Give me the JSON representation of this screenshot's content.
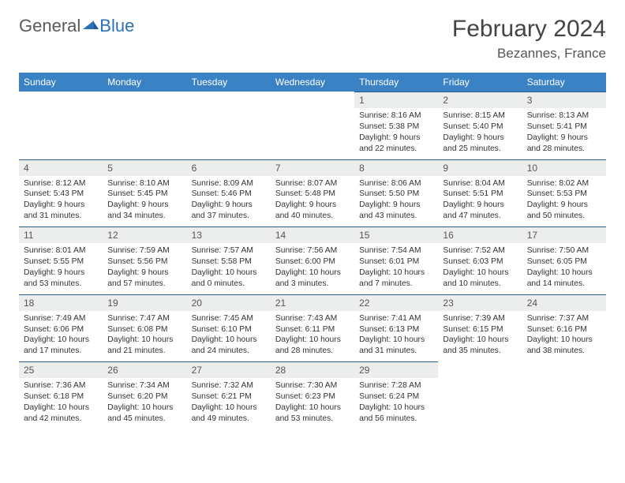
{
  "logo": {
    "text1": "General",
    "text2": "Blue"
  },
  "title": "February 2024",
  "location": "Bezannes, France",
  "colors": {
    "header_bg": "#3b82c4",
    "header_text": "#ffffff",
    "daynum_bg": "#eceded",
    "cell_border": "#2a5d8f",
    "logo_blue": "#2a72b5",
    "body_text": "#333333"
  },
  "typography": {
    "title_fontsize": 30,
    "location_fontsize": 17,
    "header_fontsize": 12,
    "daynum_fontsize": 12,
    "detail_fontsize": 10.3
  },
  "dayHeaders": [
    "Sunday",
    "Monday",
    "Tuesday",
    "Wednesday",
    "Thursday",
    "Friday",
    "Saturday"
  ],
  "weeks": [
    [
      {
        "num": "",
        "sunrise": "",
        "sunset": "",
        "daylight": ""
      },
      {
        "num": "",
        "sunrise": "",
        "sunset": "",
        "daylight": ""
      },
      {
        "num": "",
        "sunrise": "",
        "sunset": "",
        "daylight": ""
      },
      {
        "num": "",
        "sunrise": "",
        "sunset": "",
        "daylight": ""
      },
      {
        "num": "1",
        "sunrise": "Sunrise: 8:16 AM",
        "sunset": "Sunset: 5:38 PM",
        "daylight": "Daylight: 9 hours and 22 minutes."
      },
      {
        "num": "2",
        "sunrise": "Sunrise: 8:15 AM",
        "sunset": "Sunset: 5:40 PM",
        "daylight": "Daylight: 9 hours and 25 minutes."
      },
      {
        "num": "3",
        "sunrise": "Sunrise: 8:13 AM",
        "sunset": "Sunset: 5:41 PM",
        "daylight": "Daylight: 9 hours and 28 minutes."
      }
    ],
    [
      {
        "num": "4",
        "sunrise": "Sunrise: 8:12 AM",
        "sunset": "Sunset: 5:43 PM",
        "daylight": "Daylight: 9 hours and 31 minutes."
      },
      {
        "num": "5",
        "sunrise": "Sunrise: 8:10 AM",
        "sunset": "Sunset: 5:45 PM",
        "daylight": "Daylight: 9 hours and 34 minutes."
      },
      {
        "num": "6",
        "sunrise": "Sunrise: 8:09 AM",
        "sunset": "Sunset: 5:46 PM",
        "daylight": "Daylight: 9 hours and 37 minutes."
      },
      {
        "num": "7",
        "sunrise": "Sunrise: 8:07 AM",
        "sunset": "Sunset: 5:48 PM",
        "daylight": "Daylight: 9 hours and 40 minutes."
      },
      {
        "num": "8",
        "sunrise": "Sunrise: 8:06 AM",
        "sunset": "Sunset: 5:50 PM",
        "daylight": "Daylight: 9 hours and 43 minutes."
      },
      {
        "num": "9",
        "sunrise": "Sunrise: 8:04 AM",
        "sunset": "Sunset: 5:51 PM",
        "daylight": "Daylight: 9 hours and 47 minutes."
      },
      {
        "num": "10",
        "sunrise": "Sunrise: 8:02 AM",
        "sunset": "Sunset: 5:53 PM",
        "daylight": "Daylight: 9 hours and 50 minutes."
      }
    ],
    [
      {
        "num": "11",
        "sunrise": "Sunrise: 8:01 AM",
        "sunset": "Sunset: 5:55 PM",
        "daylight": "Daylight: 9 hours and 53 minutes."
      },
      {
        "num": "12",
        "sunrise": "Sunrise: 7:59 AM",
        "sunset": "Sunset: 5:56 PM",
        "daylight": "Daylight: 9 hours and 57 minutes."
      },
      {
        "num": "13",
        "sunrise": "Sunrise: 7:57 AM",
        "sunset": "Sunset: 5:58 PM",
        "daylight": "Daylight: 10 hours and 0 minutes."
      },
      {
        "num": "14",
        "sunrise": "Sunrise: 7:56 AM",
        "sunset": "Sunset: 6:00 PM",
        "daylight": "Daylight: 10 hours and 3 minutes."
      },
      {
        "num": "15",
        "sunrise": "Sunrise: 7:54 AM",
        "sunset": "Sunset: 6:01 PM",
        "daylight": "Daylight: 10 hours and 7 minutes."
      },
      {
        "num": "16",
        "sunrise": "Sunrise: 7:52 AM",
        "sunset": "Sunset: 6:03 PM",
        "daylight": "Daylight: 10 hours and 10 minutes."
      },
      {
        "num": "17",
        "sunrise": "Sunrise: 7:50 AM",
        "sunset": "Sunset: 6:05 PM",
        "daylight": "Daylight: 10 hours and 14 minutes."
      }
    ],
    [
      {
        "num": "18",
        "sunrise": "Sunrise: 7:49 AM",
        "sunset": "Sunset: 6:06 PM",
        "daylight": "Daylight: 10 hours and 17 minutes."
      },
      {
        "num": "19",
        "sunrise": "Sunrise: 7:47 AM",
        "sunset": "Sunset: 6:08 PM",
        "daylight": "Daylight: 10 hours and 21 minutes."
      },
      {
        "num": "20",
        "sunrise": "Sunrise: 7:45 AM",
        "sunset": "Sunset: 6:10 PM",
        "daylight": "Daylight: 10 hours and 24 minutes."
      },
      {
        "num": "21",
        "sunrise": "Sunrise: 7:43 AM",
        "sunset": "Sunset: 6:11 PM",
        "daylight": "Daylight: 10 hours and 28 minutes."
      },
      {
        "num": "22",
        "sunrise": "Sunrise: 7:41 AM",
        "sunset": "Sunset: 6:13 PM",
        "daylight": "Daylight: 10 hours and 31 minutes."
      },
      {
        "num": "23",
        "sunrise": "Sunrise: 7:39 AM",
        "sunset": "Sunset: 6:15 PM",
        "daylight": "Daylight: 10 hours and 35 minutes."
      },
      {
        "num": "24",
        "sunrise": "Sunrise: 7:37 AM",
        "sunset": "Sunset: 6:16 PM",
        "daylight": "Daylight: 10 hours and 38 minutes."
      }
    ],
    [
      {
        "num": "25",
        "sunrise": "Sunrise: 7:36 AM",
        "sunset": "Sunset: 6:18 PM",
        "daylight": "Daylight: 10 hours and 42 minutes."
      },
      {
        "num": "26",
        "sunrise": "Sunrise: 7:34 AM",
        "sunset": "Sunset: 6:20 PM",
        "daylight": "Daylight: 10 hours and 45 minutes."
      },
      {
        "num": "27",
        "sunrise": "Sunrise: 7:32 AM",
        "sunset": "Sunset: 6:21 PM",
        "daylight": "Daylight: 10 hours and 49 minutes."
      },
      {
        "num": "28",
        "sunrise": "Sunrise: 7:30 AM",
        "sunset": "Sunset: 6:23 PM",
        "daylight": "Daylight: 10 hours and 53 minutes."
      },
      {
        "num": "29",
        "sunrise": "Sunrise: 7:28 AM",
        "sunset": "Sunset: 6:24 PM",
        "daylight": "Daylight: 10 hours and 56 minutes."
      },
      {
        "num": "",
        "sunrise": "",
        "sunset": "",
        "daylight": ""
      },
      {
        "num": "",
        "sunrise": "",
        "sunset": "",
        "daylight": ""
      }
    ]
  ]
}
